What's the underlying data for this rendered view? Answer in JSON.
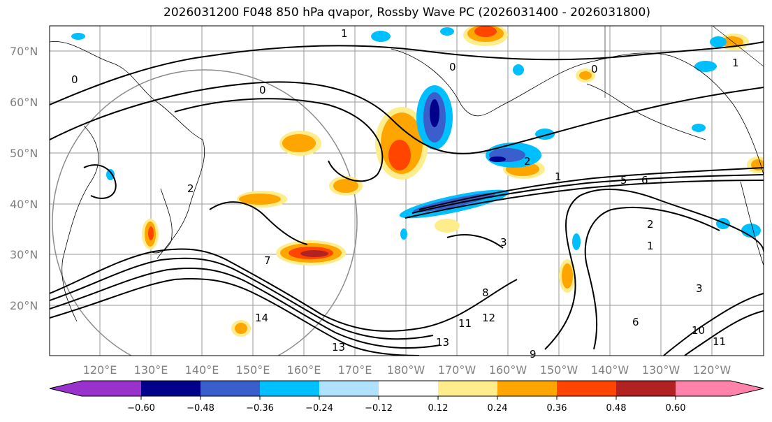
{
  "title": "2026031200 F048 850 hPa qvapor, Rossby Wave PC (2026031400 - 2026031800)",
  "lat_labels": [
    "70°N",
    "60°N",
    "50°N",
    "40°N",
    "30°N",
    "20°N"
  ],
  "lon_labels": [
    "120°E",
    "130°E",
    "140°E",
    "150°E",
    "160°E",
    "170°E",
    "180°W",
    "170°W",
    "160°W",
    "150°W",
    "140°W",
    "130°W",
    "120°W"
  ],
  "colorbar": {
    "ticks": [
      "−0.60",
      "−0.48",
      "−0.36",
      "−0.24",
      "−0.12",
      "0.12",
      "0.24",
      "0.36",
      "0.48",
      "0.60"
    ],
    "colors": [
      "#9932cc",
      "#00008b",
      "#3a5fcd",
      "#00bfff",
      "#b0e2ff",
      "#ffffff",
      "#ffec8b",
      "#ffa500",
      "#ff4500",
      "#b22222",
      "#ff82ab"
    ]
  },
  "contour_labels": [
    "1",
    "0",
    "0",
    "0",
    "0",
    "2",
    "2",
    "1",
    "5",
    "6",
    "7",
    "8",
    "3",
    "13",
    "14",
    "12",
    "11",
    "13",
    "11",
    "6",
    "3",
    "1",
    "10",
    "2",
    "1",
    "9"
  ]
}
